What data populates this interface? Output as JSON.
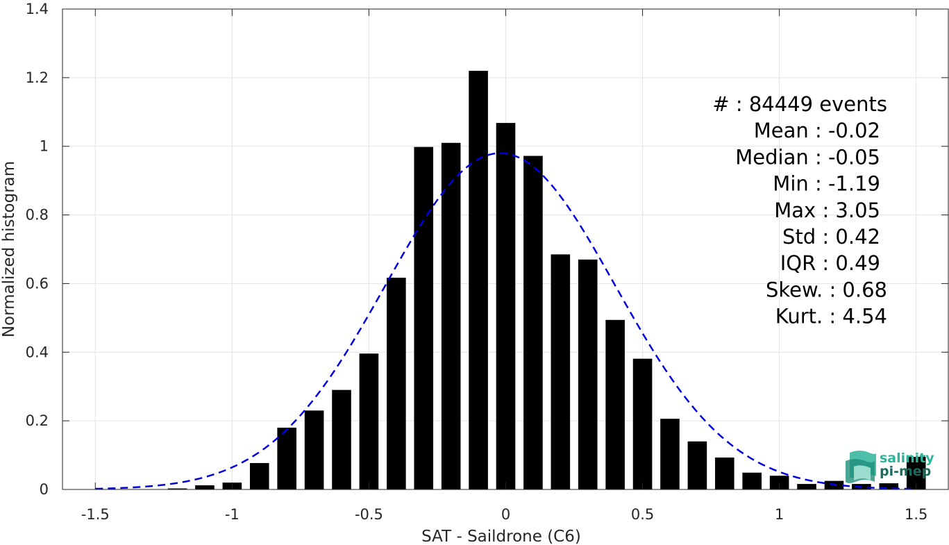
{
  "chart_data": {
    "type": "bar",
    "xlabel": "SAT - Saildrone (C6)",
    "ylabel": "Normalized histogram",
    "xlim": [
      -1.62,
      1.62
    ],
    "ylim": [
      0,
      1.4
    ],
    "xticks": [
      -1.5,
      -1,
      -0.5,
      0,
      0.5,
      1,
      1.5
    ],
    "xtick_labels": [
      "-1.5",
      "-1",
      "-0.5",
      "0",
      "0.5",
      "1",
      "1.5"
    ],
    "yticks": [
      0,
      0.2,
      0.4,
      0.6,
      0.8,
      1,
      1.2,
      1.4
    ],
    "ytick_labels": [
      "0",
      "0.2",
      "0.4",
      "0.6",
      "0.8",
      "1",
      "1.2",
      "1.4"
    ],
    "grid": true,
    "bar_width": 0.07,
    "bar_color": "#000000",
    "bins": [
      -1.5,
      -1.4,
      -1.3,
      -1.2,
      -1.1,
      -1.0,
      -0.9,
      -0.8,
      -0.7,
      -0.6,
      -0.5,
      -0.4,
      -0.3,
      -0.2,
      -0.1,
      0.0,
      0.1,
      0.2,
      0.3,
      0.4,
      0.5,
      0.6,
      0.7,
      0.8,
      0.9,
      1.0,
      1.1,
      1.2,
      1.3,
      1.4,
      1.5
    ],
    "values": [
      0.0,
      0.0,
      0.0,
      0.003,
      0.012,
      0.02,
      0.077,
      0.18,
      0.23,
      0.29,
      0.396,
      0.617,
      0.998,
      1.01,
      1.22,
      1.068,
      0.972,
      0.685,
      0.67,
      0.494,
      0.381,
      0.206,
      0.14,
      0.093,
      0.049,
      0.04,
      0.016,
      0.025,
      0.016,
      0.018,
      0.095
    ],
    "fit_curve": {
      "type": "normal",
      "mean": -0.02,
      "std": 0.42,
      "peak": 0.98,
      "color": "#0000dd",
      "style": "dashed"
    },
    "stats": [
      {
        "label": "#  : 84449 events"
      },
      {
        "label": "Mean : -0.02"
      },
      {
        "label": "Median : -0.05"
      },
      {
        "label": "Min : -1.19"
      },
      {
        "label": "Max : 3.05"
      },
      {
        "label": "Std : 0.42"
      },
      {
        "label": "IQR : 0.49"
      },
      {
        "label": "Skew. : 0.68"
      },
      {
        "label": "Kurt. : 4.54"
      }
    ]
  },
  "logo": {
    "line1": "salinity",
    "line2": "pi-mep",
    "color1": "#2fb39a",
    "color2": "#1a6b5e"
  }
}
